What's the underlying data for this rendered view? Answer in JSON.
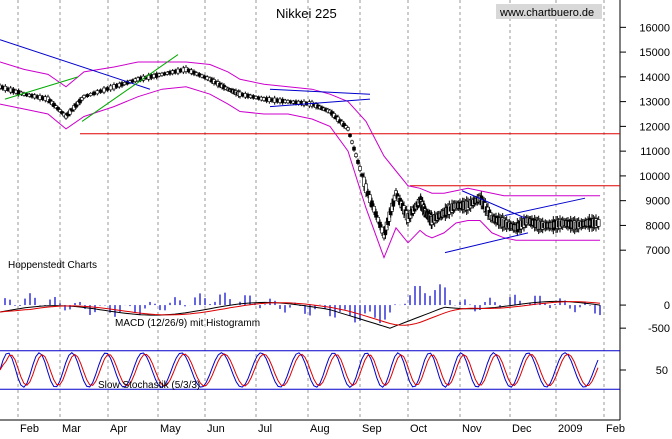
{
  "chart_data": [
    {
      "type": "line",
      "title": "Nikkei 225",
      "watermark": "www.chartbuero.de",
      "provider": "Hoppenstedt Charts",
      "x_months": [
        "Feb",
        "Mar",
        "Apr",
        "May",
        "Jun",
        "Jul",
        "Aug",
        "Sep",
        "Oct",
        "Nov",
        "Dec",
        "2009",
        "Feb"
      ],
      "ylim": [
        6200,
        16700
      ],
      "y_ticks": [
        "16000",
        "15000",
        "14000",
        "13000",
        "12000",
        "11000",
        "10000",
        "9000",
        "8000",
        "7000"
      ],
      "price_series": {
        "name": "",
        "t": [
          0.0,
          0.04,
          0.08,
          0.11,
          0.14,
          0.19,
          0.23,
          0.27,
          0.31,
          0.35,
          0.38,
          0.4,
          0.44,
          0.48,
          0.52,
          0.55,
          0.58,
          0.61,
          0.64,
          0.66,
          0.68,
          0.7,
          0.71,
          0.72,
          0.74,
          0.76,
          0.78,
          0.8,
          0.82,
          0.84,
          0.86,
          0.88,
          0.9,
          0.92,
          0.94,
          0.96,
          0.98,
          1.0
        ],
        "values": [
          13600,
          13300,
          13100,
          12400,
          13200,
          13600,
          13900,
          14100,
          14300,
          13900,
          13500,
          13300,
          13100,
          13000,
          12900,
          12600,
          11900,
          9500,
          7600,
          9300,
          8300,
          9000,
          8500,
          8200,
          8500,
          8800,
          8800,
          9100,
          8300,
          8100,
          7900,
          8200,
          8000,
          8000,
          8100,
          8000,
          8100,
          8100
        ]
      },
      "bollinger_upper": [
        14600,
        14300,
        14100,
        13600,
        14200,
        14400,
        14600,
        14600,
        14600,
        14500,
        14200,
        13900,
        13700,
        13600,
        13500,
        13300,
        13000,
        12200,
        10800,
        10200,
        9600,
        9500,
        9400,
        9300,
        9300,
        9400,
        9500,
        9400,
        9300,
        9200,
        9200,
        9200,
        9200,
        9200,
        9200,
        9200,
        9200,
        9200
      ],
      "bollinger_lower": [
        12900,
        12700,
        12500,
        11900,
        12400,
        12800,
        13200,
        13500,
        13600,
        13300,
        12900,
        12600,
        12500,
        12500,
        12300,
        12000,
        11000,
        8700,
        6700,
        7900,
        7300,
        7800,
        7600,
        7500,
        7700,
        8100,
        8200,
        8200,
        7700,
        7500,
        7400,
        7400,
        7400,
        7400,
        7400,
        7400,
        7400,
        7400
      ],
      "horizontal_lines": [
        11700,
        9600
      ],
      "annotations": [
        "Hoppenstedt Charts"
      ]
    },
    {
      "type": "line",
      "title": "MACD (12/26/9) mit Histogramm",
      "ylim": [
        -800,
        500
      ],
      "y_ticks": [
        "0",
        "-500"
      ]
    },
    {
      "type": "line",
      "title": "Slow Stochastik (5/3/3)",
      "ylim": [
        0,
        100
      ],
      "y_ticks": [
        "50"
      ],
      "reference_lines": [
        80,
        20
      ]
    }
  ],
  "colors": {
    "price": "#000000",
    "bollinger": "#cc00cc",
    "resistance": "#dd0000",
    "trend_blue": "#0000cc",
    "trend_green": "#00aa00",
    "macd": "#000000",
    "signal": "#dd0000",
    "histogram": "#0000cc",
    "stoch_k": "#0000cc",
    "stoch_d": "#dd0000",
    "grid": "#999999"
  }
}
